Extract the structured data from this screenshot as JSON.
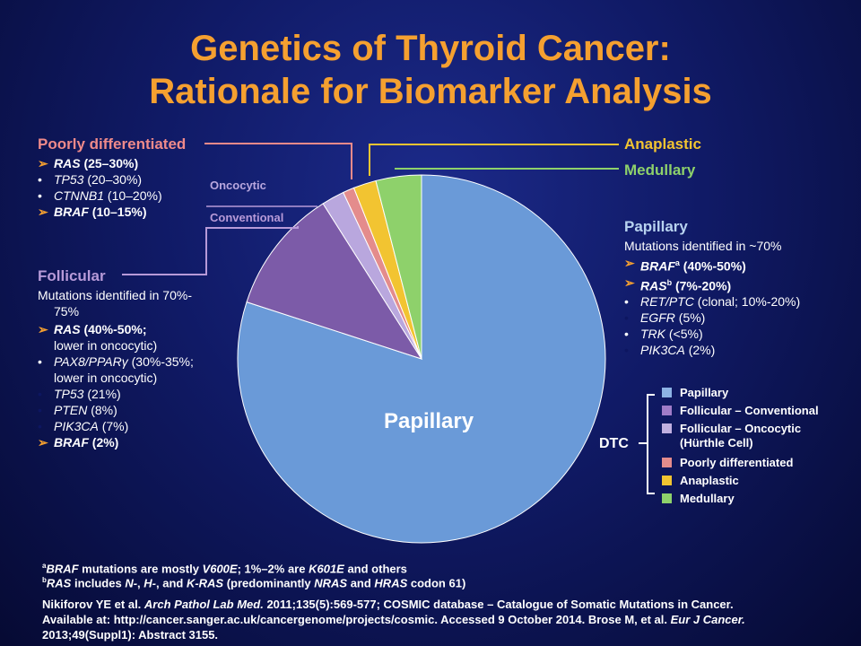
{
  "title": {
    "line1": "Genetics of Thyroid Cancer:",
    "line2": "Rationale for Biomarker Analysis"
  },
  "colors": {
    "title": "#f5a030",
    "papillary": "#6a9ad8",
    "follicular_conventional": "#7c5ba8",
    "follicular_oncocytic": "#b9a7de",
    "poorly_differentiated": "#e48c8c",
    "anaplastic": "#f2c431",
    "medullary": "#8ed16b"
  },
  "chart_data": {
    "type": "pie",
    "title": "",
    "slices": [
      {
        "label": "Papillary",
        "value": 80,
        "color": "#6a9ad8"
      },
      {
        "label": "Follicular – Conventional",
        "value": 11,
        "color": "#7c5ba8"
      },
      {
        "label": "Follicular – Oncocytic (Hürthle Cell)",
        "value": 2,
        "color": "#b9a7de"
      },
      {
        "label": "Poorly differentiated",
        "value": 1,
        "color": "#e48c8c"
      },
      {
        "label": "Anaplastic",
        "value": 2,
        "color": "#f2c431"
      },
      {
        "label": "Medullary",
        "value": 4,
        "color": "#8ed16b"
      }
    ],
    "center_label": "Papillary",
    "legend_placement": "right",
    "legend_group_label": "DTC"
  },
  "labels": {
    "poorly": {
      "heading": "Poorly differentiated",
      "items": [
        {
          "marker": "➢",
          "gene": "RAS",
          "rest": " (25–30%)"
        },
        {
          "marker": "•",
          "gene": "TP53",
          "rest": " (20–30%)"
        },
        {
          "marker": "•",
          "gene": "CTNNB1",
          "rest": " (10–20%)"
        },
        {
          "marker": "➢",
          "gene": "BRAF",
          "rest": " (10–15%)"
        }
      ]
    },
    "oncocytic": "Oncocytic",
    "conventional": "Conventional",
    "follicular": {
      "heading": "Follicular",
      "line1": "Mutations identified in 70%-",
      "line2": "75%",
      "items": [
        {
          "marker": "➢",
          "gene": "RAS",
          "rest": " (40%-50%;",
          "sub": "lower in oncocytic)"
        },
        {
          "marker": "•",
          "gene": "PAX8/PPARγ",
          "rest": " (30%-35%;",
          "sub": "lower in oncocytic)"
        },
        {
          "marker": "•",
          "gene": "TP53",
          "rest": " (21%)"
        },
        {
          "marker": "•",
          "gene": "PTEN",
          "rest": " (8%)"
        },
        {
          "marker": "•",
          "gene": "PIK3CA",
          "rest": " (7%)"
        },
        {
          "marker": "➢",
          "gene": "BRAF",
          "rest": " (2%)"
        }
      ]
    },
    "anaplastic": "Anaplastic",
    "medullary": "Medullary",
    "papillary": {
      "heading": "Papillary",
      "line1": "Mutations identified in ~70%",
      "items": [
        {
          "marker": "➢",
          "gene": "BRAF",
          "sup": "a",
          "rest": " (40%-50%)"
        },
        {
          "marker": "➢",
          "gene": "RAS",
          "sup": "b",
          "rest": " (7%-20%)"
        },
        {
          "marker": "•",
          "gene": "RET/PTC",
          "rest": " (clonal;  10%-20%)"
        },
        {
          "marker": "•",
          "gene": "EGFR",
          "rest": " (5%)"
        },
        {
          "marker": "•",
          "gene": "TRK",
          "rest": " (<5%)"
        },
        {
          "marker": "•",
          "gene": "PIK3CA",
          "rest": " (2%)"
        }
      ]
    }
  },
  "legend": {
    "dtc": "DTC",
    "items": [
      {
        "label": "Papillary",
        "color": "#8db3e4"
      },
      {
        "label": "Follicular – Conventional",
        "color": "#a07cc8"
      },
      {
        "label": "Follicular – Oncocytic",
        "label2": "(Hürthle Cell)",
        "color": "#c0b0e0"
      },
      {
        "label": "Poorly differentiated",
        "color": "#e48c8c"
      },
      {
        "label": "Anaplastic",
        "color": "#f2c431"
      },
      {
        "label": "Medullary",
        "color": "#8ed16b"
      }
    ]
  },
  "footnotes": {
    "a_sup": "a",
    "a_gene": "BRAF",
    "a_mid": " mutations are mostly ",
    "a_v1": "V600E",
    "a_pct": "; 1%–2%  are ",
    "a_v2": "K601E",
    "a_end": " and others",
    "b_sup": "b",
    "b_gene": "RAS",
    "b_mid": " includes ",
    "b_n": "N-",
    "b_c1": ", ",
    "b_h": "H-",
    "b_and": ", and ",
    "b_k": "K-RAS",
    "b_pre": " (predominantly ",
    "b_nras": "NRAS",
    "b_and2": " and ",
    "b_hras": "HRAS",
    "b_end": " codon 61)"
  },
  "reference": {
    "r1a": "Nikiforov YE et al. ",
    "r1b": "Arch Pathol Lab Med.",
    "r1c": " 2011;135(5):569-577;  COSMIC database – Catalogue of Somatic Mutations in Cancer.",
    "r2a": "Available at: http://cancer.sanger.ac.uk/cancergenome/projects/cosmic. Accessed 9 October 2014. Brose M, et al. ",
    "r2b": "Eur J Cancer.",
    "r3": "2013;49(Suppl1):  Abstract  3155."
  }
}
